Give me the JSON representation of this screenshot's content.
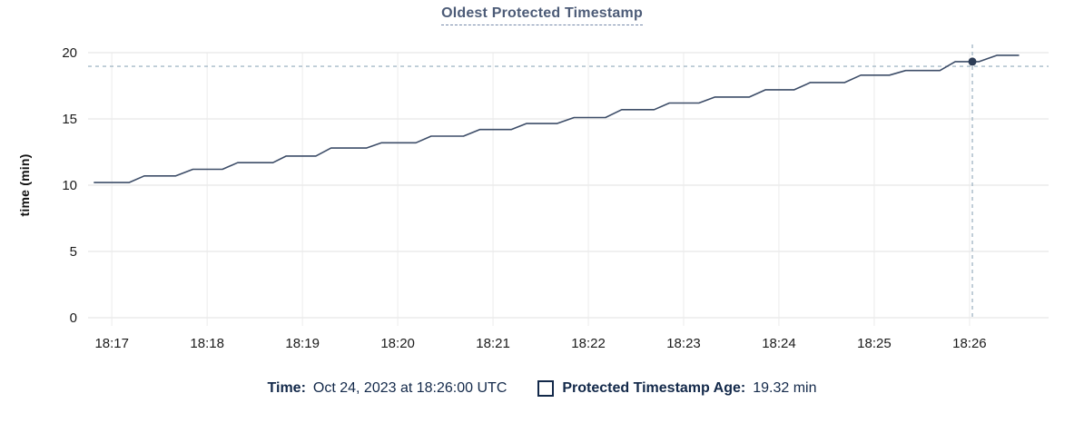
{
  "title": "Oldest Protected Timestamp",
  "y_axis_label": "time (min)",
  "legend": {
    "time_label": "Time:",
    "time_value": "Oct 24, 2023 at 18:26:00 UTC",
    "series_label": "Protected Timestamp Age:",
    "series_value": "19.32 min",
    "checkbox_icon": "square-outline-unchecked"
  },
  "colors": {
    "title_text": "#4c5b77",
    "line": "#3d4d68",
    "point": "#2c3c56",
    "grid_horizontal": "#ebebeb",
    "grid_vertical": "#f1f1f1",
    "crosshair": "#a6bac8",
    "tick_text": "#1a1a1a",
    "legend_text": "#13294a"
  },
  "chart_data": {
    "type": "line",
    "title": "Oldest Protected Timestamp",
    "xlabel": "",
    "ylabel": "time (min)",
    "ylim": [
      0,
      20
    ],
    "yticks": [
      0,
      5,
      10,
      15,
      20
    ],
    "x_tick_labels": [
      "18:17",
      "18:18",
      "18:19",
      "18:20",
      "18:21",
      "18:22",
      "18:23",
      "18:24",
      "18:25",
      "18:26"
    ],
    "x_domain_minutes_after_1817": [
      -0.25,
      9.83
    ],
    "grid": true,
    "legend_position": "bottom",
    "series": [
      {
        "name": "Protected Timestamp Age",
        "unit": "min",
        "points": [
          [
            -0.19,
            10.2
          ],
          [
            0.18,
            10.2
          ],
          [
            0.34,
            10.7
          ],
          [
            0.67,
            10.7
          ],
          [
            0.85,
            11.2
          ],
          [
            1.16,
            11.2
          ],
          [
            1.32,
            11.7
          ],
          [
            1.69,
            11.7
          ],
          [
            1.83,
            12.2
          ],
          [
            2.14,
            12.2
          ],
          [
            2.3,
            12.8
          ],
          [
            2.67,
            12.8
          ],
          [
            2.83,
            13.2
          ],
          [
            3.19,
            13.2
          ],
          [
            3.35,
            13.7
          ],
          [
            3.69,
            13.7
          ],
          [
            3.86,
            14.2
          ],
          [
            4.19,
            14.2
          ],
          [
            4.35,
            14.65
          ],
          [
            4.67,
            14.65
          ],
          [
            4.85,
            15.1
          ],
          [
            5.18,
            15.1
          ],
          [
            5.35,
            15.7
          ],
          [
            5.69,
            15.7
          ],
          [
            5.85,
            16.2
          ],
          [
            6.16,
            16.2
          ],
          [
            6.33,
            16.65
          ],
          [
            6.69,
            16.65
          ],
          [
            6.86,
            17.2
          ],
          [
            7.16,
            17.2
          ],
          [
            7.33,
            17.75
          ],
          [
            7.69,
            17.75
          ],
          [
            7.86,
            18.3
          ],
          [
            8.16,
            18.3
          ],
          [
            8.33,
            18.65
          ],
          [
            8.69,
            18.65
          ],
          [
            8.85,
            19.32
          ],
          [
            9.1,
            19.32
          ],
          [
            9.29,
            19.8
          ],
          [
            9.52,
            19.8
          ]
        ]
      }
    ],
    "highlight": {
      "t_minutes_after_1817": 9.03,
      "value": 19.32,
      "time_text": "Oct 24, 2023 at 18:26:00 UTC",
      "value_text": "19.32 min"
    },
    "crosshair_horizontal_value": 18.97
  }
}
